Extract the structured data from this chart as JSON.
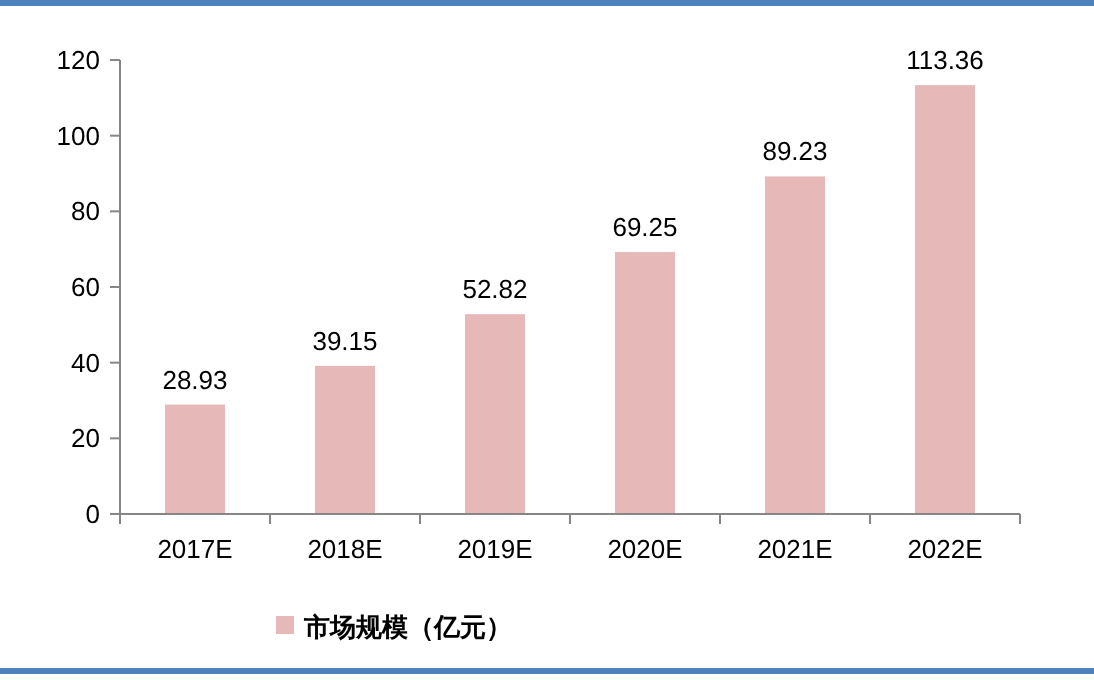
{
  "chart_data": {
    "type": "bar",
    "categories": [
      "2017E",
      "2018E",
      "2019E",
      "2020E",
      "2021E",
      "2022E"
    ],
    "series": [
      {
        "name": "市场规模（亿元）",
        "color": "#e6b9b8",
        "values": [
          28.93,
          39.15,
          52.82,
          69.25,
          89.23,
          113.36
        ]
      }
    ],
    "ylim": [
      0,
      120
    ],
    "yticks": [
      0,
      20,
      40,
      60,
      80,
      100,
      120
    ],
    "data_labels": true,
    "legend": "bottom",
    "grid": false
  }
}
